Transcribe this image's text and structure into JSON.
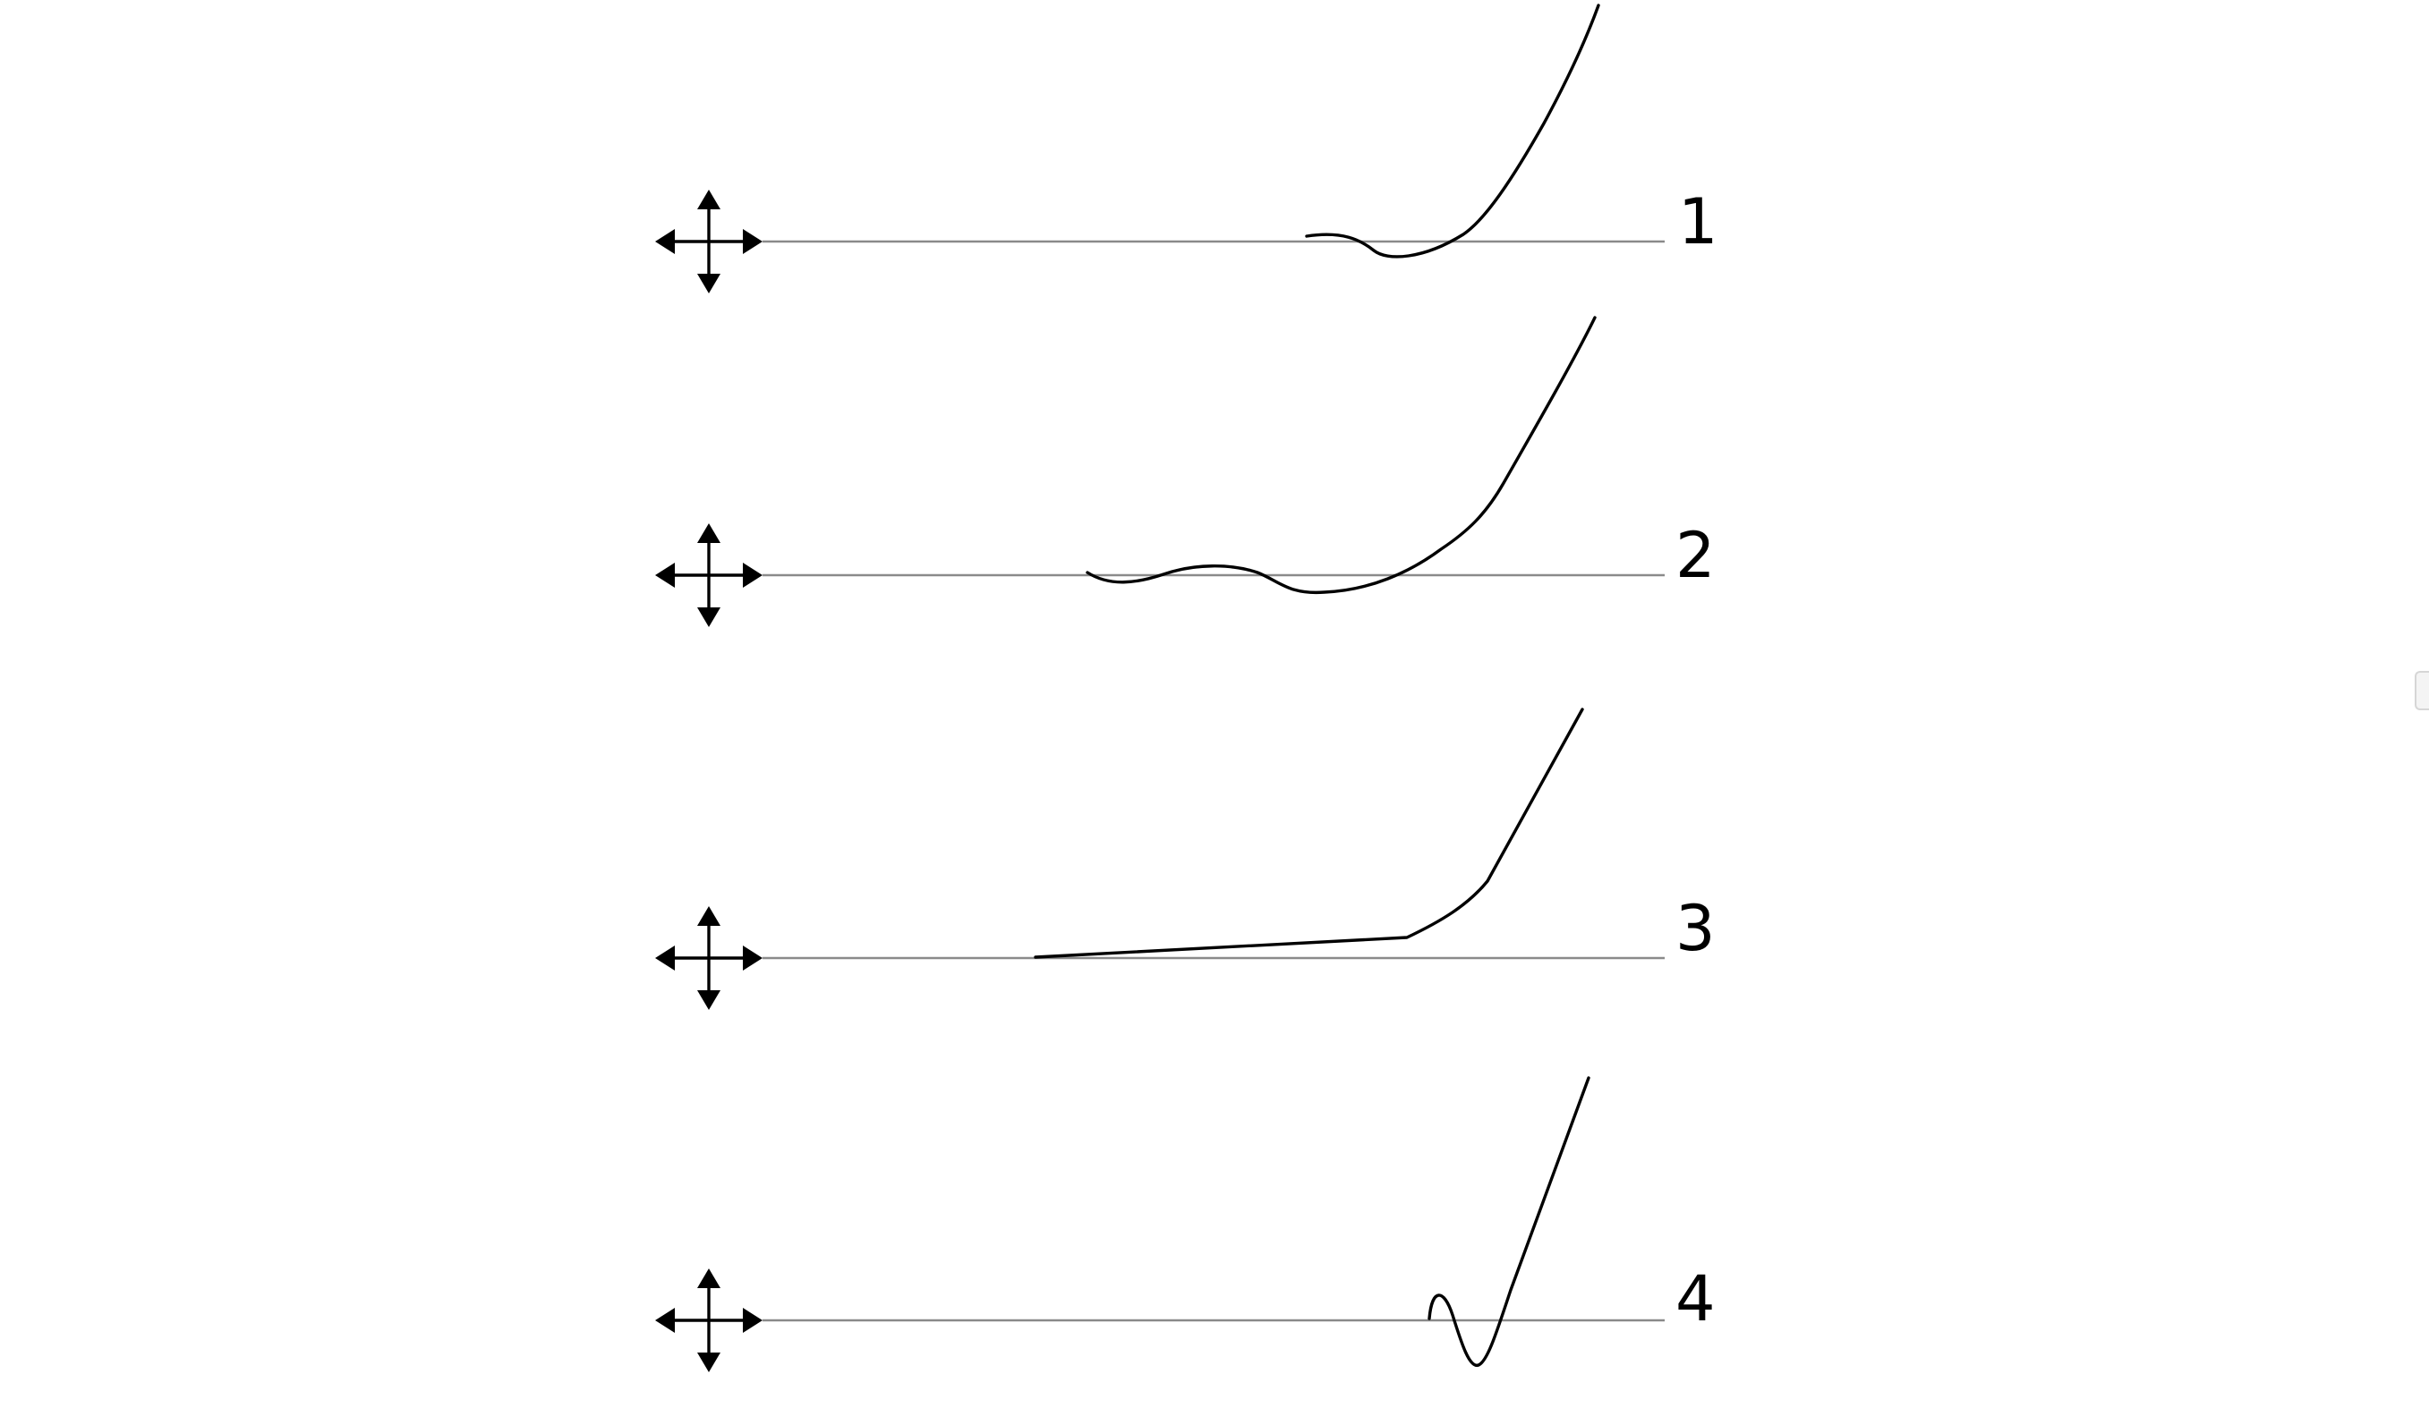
{
  "diagram": {
    "rows": [
      {
        "label": "1",
        "icon": "move-arrows-icon"
      },
      {
        "label": "2",
        "icon": "move-arrows-icon"
      },
      {
        "label": "3",
        "icon": "move-arrows-icon"
      },
      {
        "label": "4",
        "icon": "move-arrows-icon"
      }
    ],
    "colors": {
      "curve": "#000000",
      "baseline": "#8a8a8a",
      "background": "#ffffff"
    }
  }
}
